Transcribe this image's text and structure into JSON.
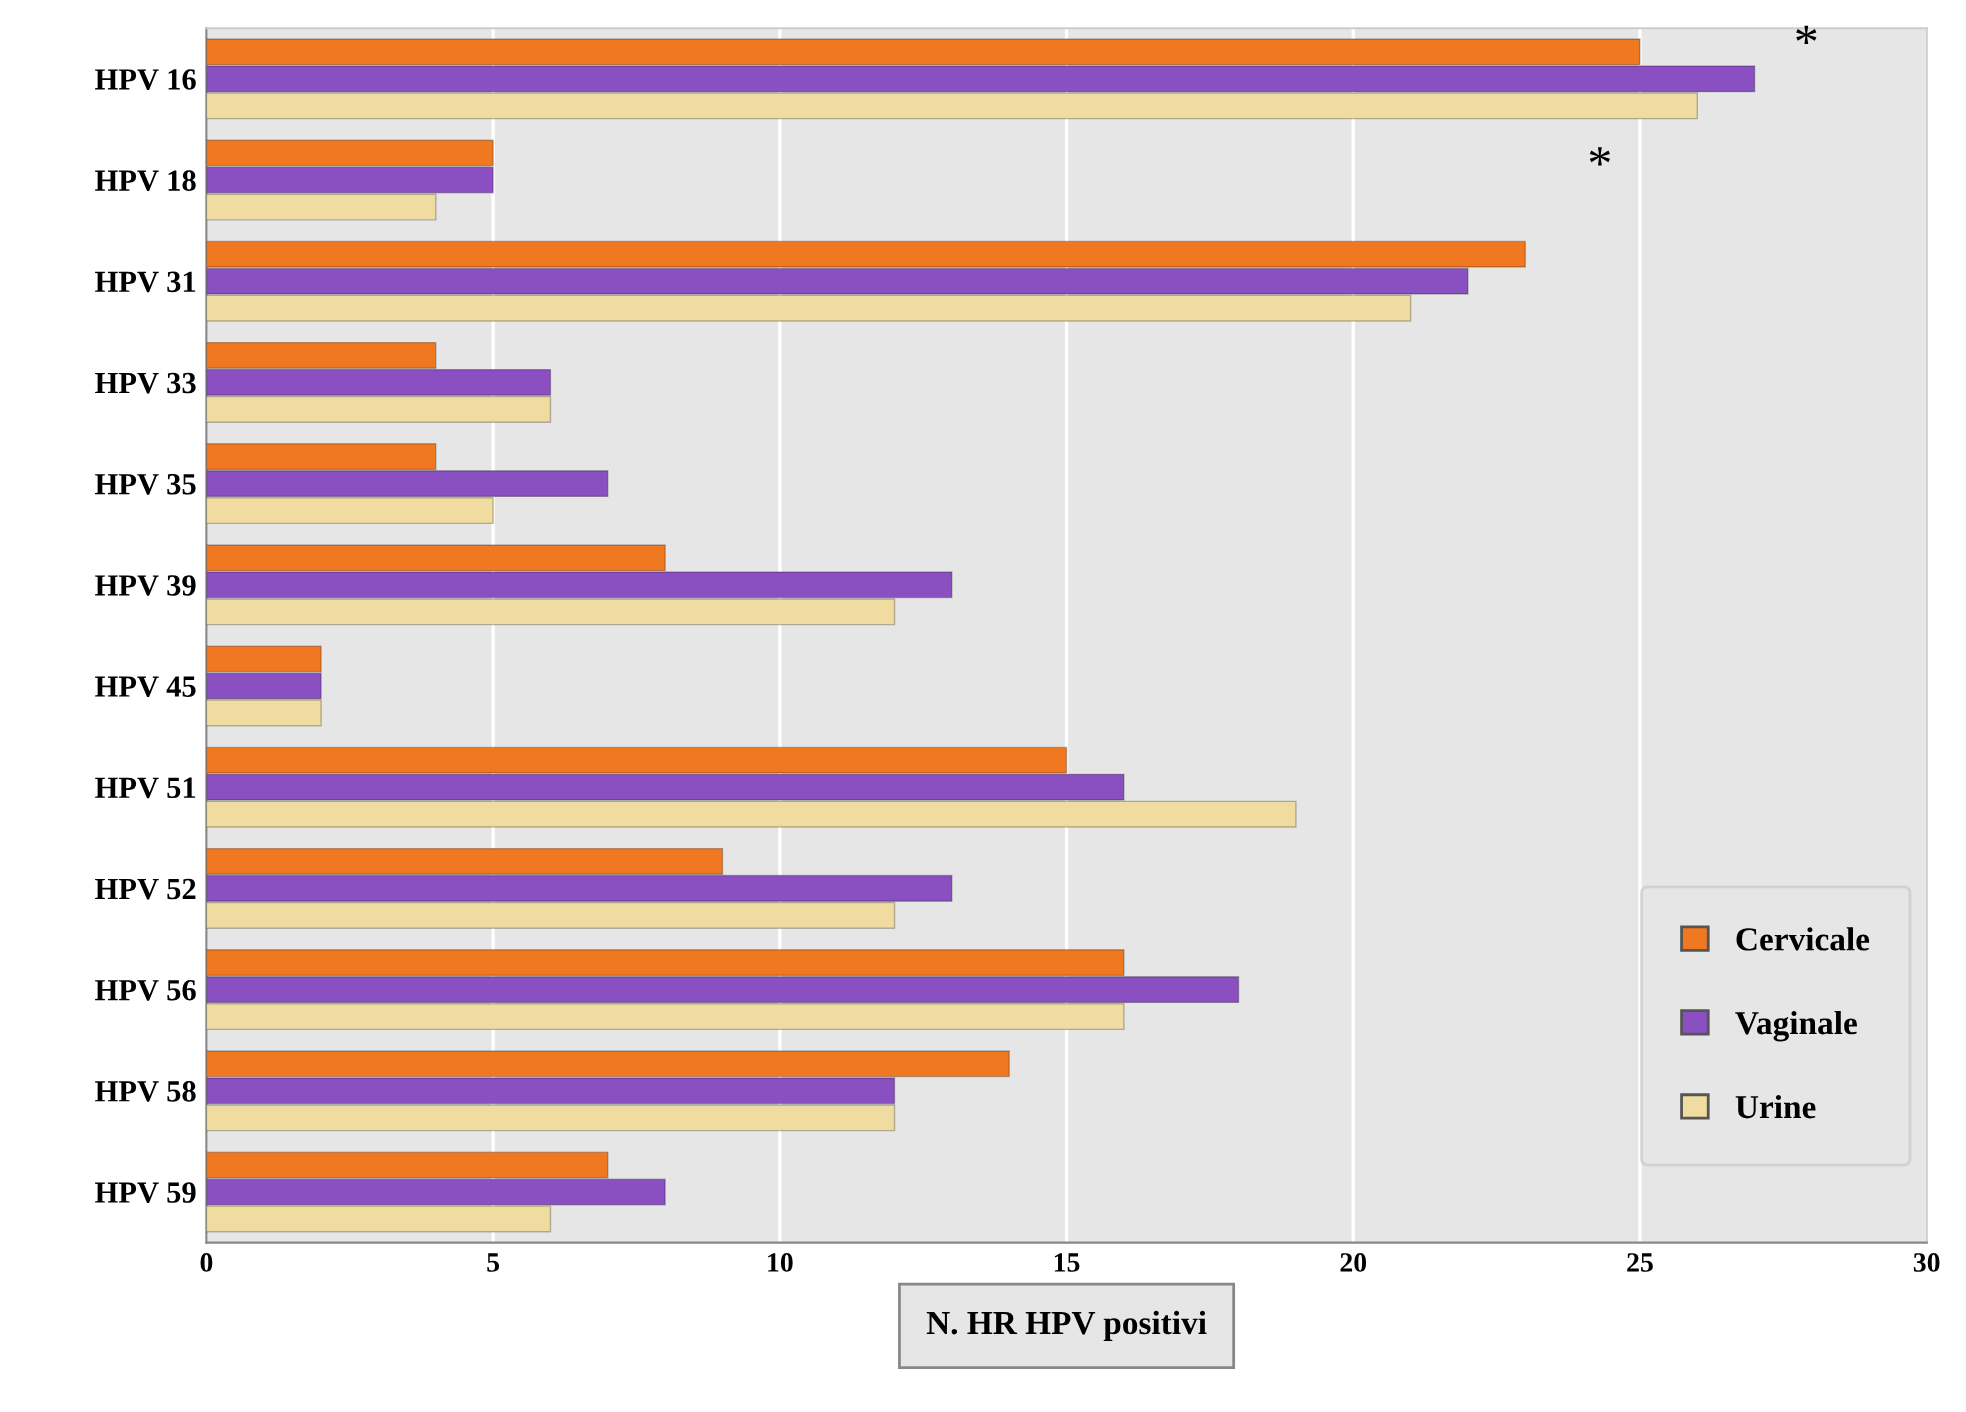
{
  "chart_data": {
    "type": "bar",
    "orientation": "horizontal",
    "categories": [
      "HPV 16",
      "HPV 18",
      "HPV 31",
      "HPV 33",
      "HPV 35",
      "HPV 39",
      "HPV 45",
      "HPV 51",
      "HPV 52",
      "HPV 56",
      "HPV 58",
      "HPV 59"
    ],
    "series": [
      {
        "name": "Cervicale",
        "color": "#f07820",
        "values": [
          25,
          5,
          23,
          4,
          4,
          8,
          2,
          15,
          9,
          16,
          14,
          7
        ]
      },
      {
        "name": "Vaginale",
        "color": "#8a4fc0",
        "values": [
          27,
          5,
          22,
          6,
          7,
          13,
          2,
          16,
          13,
          18,
          12,
          8
        ]
      },
      {
        "name": "Urine",
        "color": "#f0dca0",
        "values": [
          26,
          4,
          21,
          6,
          5,
          12,
          2,
          19,
          12,
          16,
          12,
          6
        ]
      }
    ],
    "xlim": [
      0,
      30
    ],
    "xticks": [
      0,
      5,
      10,
      15,
      20,
      25,
      30
    ],
    "xlabel": "N. HR HPV positivi",
    "grid": "x",
    "legend": "bottom right",
    "annotations": [
      "*",
      "*"
    ]
  }
}
